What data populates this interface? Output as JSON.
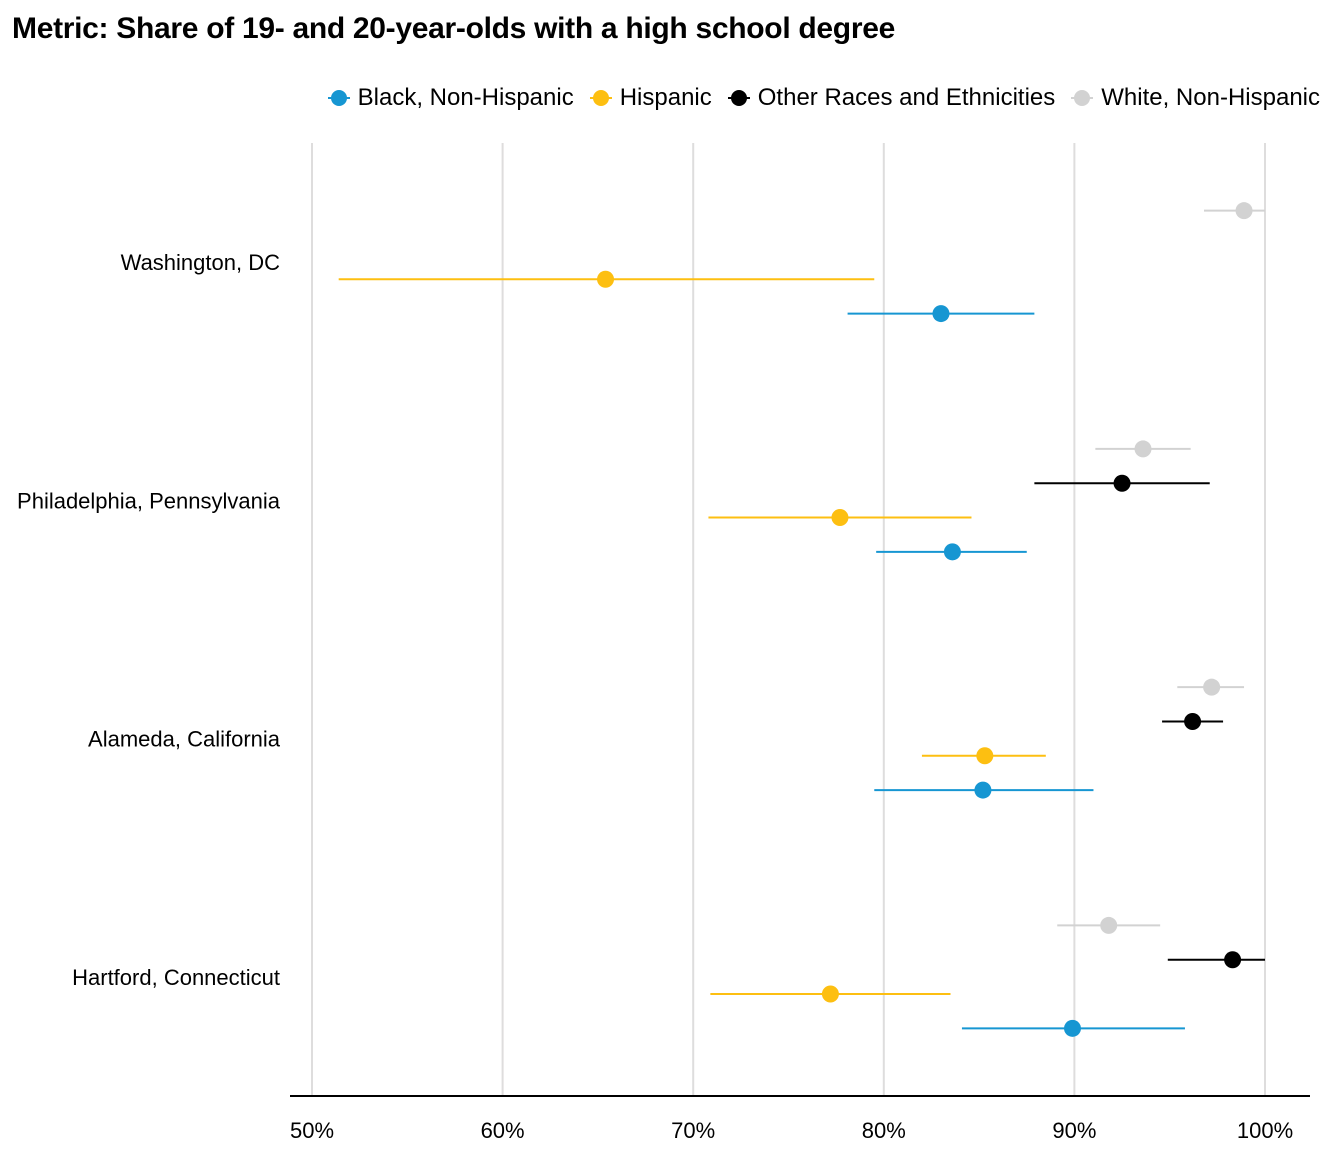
{
  "chart_data": {
    "type": "scatter",
    "title": "Metric: Share of 19- and 20-year-olds with a high school degree",
    "xlabel": "",
    "ylabel": "",
    "xlim": [
      50,
      100
    ],
    "x_ticks": [
      "50%",
      "60%",
      "70%",
      "80%",
      "90%",
      "100%"
    ],
    "grid": "vertical",
    "legend_position": "top-right",
    "categories": [
      "Washington, DC",
      "Philadelphia, Pennsylvania",
      "Alameda, California",
      "Hartford, Connecticut"
    ],
    "series": [
      {
        "name": "Black, Non-Hispanic",
        "color": "#1696d2",
        "points": [
          {
            "category": "Washington, DC",
            "value": 83.0,
            "low": 78.1,
            "high": 87.9
          },
          {
            "category": "Philadelphia, Pennsylvania",
            "value": 83.6,
            "low": 79.6,
            "high": 87.5
          },
          {
            "category": "Alameda, California",
            "value": 85.2,
            "low": 79.5,
            "high": 91.0
          },
          {
            "category": "Hartford, Connecticut",
            "value": 89.9,
            "low": 84.1,
            "high": 95.8
          }
        ]
      },
      {
        "name": "Hispanic",
        "color": "#fdbf11",
        "points": [
          {
            "category": "Washington, DC",
            "value": 65.4,
            "low": 51.4,
            "high": 79.5
          },
          {
            "category": "Philadelphia, Pennsylvania",
            "value": 77.7,
            "low": 70.8,
            "high": 84.6
          },
          {
            "category": "Alameda, California",
            "value": 85.3,
            "low": 82.0,
            "high": 88.5
          },
          {
            "category": "Hartford, Connecticut",
            "value": 77.2,
            "low": 70.9,
            "high": 83.5
          }
        ]
      },
      {
        "name": "Other Races and Ethnicities",
        "color": "#000000",
        "points": [
          {
            "category": "Philadelphia, Pennsylvania",
            "value": 92.5,
            "low": 87.9,
            "high": 97.1
          },
          {
            "category": "Alameda, California",
            "value": 96.2,
            "low": 94.6,
            "high": 97.8
          },
          {
            "category": "Hartford, Connecticut",
            "value": 98.3,
            "low": 94.9,
            "high": 100.0
          }
        ]
      },
      {
        "name": "White, Non-Hispanic",
        "color": "#d2d2d2",
        "points": [
          {
            "category": "Washington, DC",
            "value": 98.9,
            "low": 96.8,
            "high": 100.0
          },
          {
            "category": "Philadelphia, Pennsylvania",
            "value": 93.6,
            "low": 91.1,
            "high": 96.1
          },
          {
            "category": "Alameda, California",
            "value": 97.2,
            "low": 95.4,
            "high": 98.9
          },
          {
            "category": "Hartford, Connecticut",
            "value": 91.8,
            "low": 89.1,
            "high": 94.5
          }
        ]
      }
    ]
  }
}
